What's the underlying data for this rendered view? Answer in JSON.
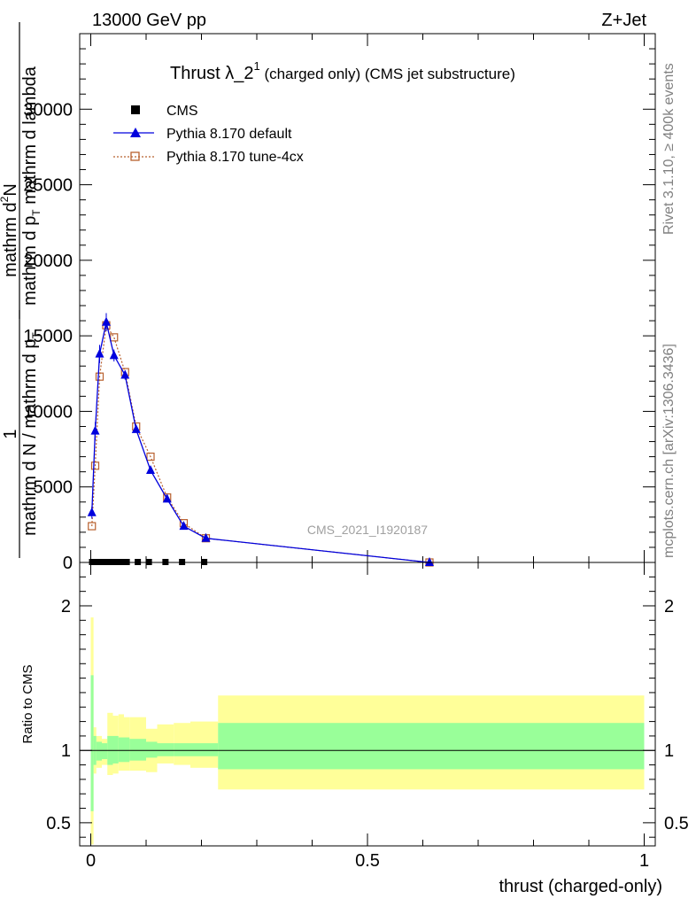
{
  "header": {
    "left": "13000 GeV pp",
    "right": "Z+Jet"
  },
  "title": {
    "main": "Thrust λ_2",
    "sup": "1",
    "rest": " (charged only) (CMS jet substructure)"
  },
  "side_labels": {
    "rivet": "Rivet 3.1.10, ≥ 400k events",
    "mcplots": "mcplots.cern.ch [arXiv:1306.3436]"
  },
  "watermark": "CMS_2021_I1920187",
  "ylabel_main": {
    "line1": "mathrm d",
    "line1_sup": "2",
    "line1_tail": "N",
    "line2": "mathrm d p",
    "line2_sub": "T",
    "line2_tail": " mathrm d lambda",
    "one": "1",
    "line3": "mathrm d N / mathrm d p",
    "line3_sub": "T"
  },
  "ylabel_ratio": "Ratio to CMS",
  "xlabel": "thrust (charged-only)",
  "legend": [
    {
      "label": "CMS"
    },
    {
      "label": "Pythia 8.170 default"
    },
    {
      "label": "Pythia 8.170 tune-4cx"
    }
  ],
  "colors": {
    "cms": "#000000",
    "default": "#0000dd",
    "tune": "#b8602e",
    "band_inner": "#99ff99",
    "band_outer": "#ffff99"
  },
  "chart_data": [
    {
      "type": "line",
      "panel": "main",
      "xlim": [
        -0.02,
        1.02
      ],
      "ylim": [
        0,
        35000
      ],
      "yticks": [
        0,
        5000,
        10000,
        15000,
        20000,
        25000,
        30000
      ],
      "ytick_labels": [
        "0",
        "5000",
        "10000",
        "15000",
        "20000",
        "25000",
        "30000"
      ],
      "series": [
        {
          "name": "CMS",
          "x": [
            0.0025,
            0.0075,
            0.0125,
            0.0175,
            0.025,
            0.035,
            0.045,
            0.055,
            0.065,
            0.085,
            0.105,
            0.135,
            0.165,
            0.205
          ],
          "y": [
            0,
            0,
            0,
            0,
            0,
            0,
            0,
            0,
            0,
            0,
            0,
            0,
            0,
            0
          ]
        },
        {
          "name": "Pythia 8.170 default",
          "x": [
            0.002,
            0.008,
            0.016,
            0.028,
            0.042,
            0.062,
            0.082,
            0.108,
            0.138,
            0.168,
            0.208,
            0.612
          ],
          "y": [
            3300,
            8700,
            13800,
            15900,
            13700,
            12400,
            8800,
            6100,
            4200,
            2400,
            1600,
            0
          ],
          "yerr": [
            400,
            600,
            600,
            600,
            400,
            300,
            200,
            150,
            120,
            100,
            80,
            20
          ]
        },
        {
          "name": "Pythia 8.170 tune-4cx",
          "x": [
            0.002,
            0.008,
            0.016,
            0.028,
            0.042,
            0.062,
            0.082,
            0.108,
            0.138,
            0.168,
            0.208,
            0.612
          ],
          "y": [
            2400,
            6400,
            12300,
            15700,
            14900,
            12600,
            9000,
            7000,
            4300,
            2600,
            1600,
            0
          ]
        }
      ]
    },
    {
      "type": "area",
      "panel": "ratio",
      "xlim": [
        -0.02,
        1.02
      ],
      "ylim": [
        0.34,
        2.3
      ],
      "yticks": [
        0.5,
        1,
        2
      ],
      "ytick_labels": [
        "0.5",
        "1",
        "2"
      ],
      "xticks": [
        0,
        0.5,
        1
      ],
      "xtick_labels": [
        "0",
        "0.5",
        "1"
      ],
      "bands": [
        {
          "x0": 0.0,
          "x1": 0.005,
          "inner": [
            0.58,
            1.52
          ],
          "outer": [
            0.35,
            1.92
          ]
        },
        {
          "x0": 0.005,
          "x1": 0.01,
          "inner": [
            0.9,
            1.1
          ],
          "outer": [
            0.84,
            1.16
          ]
        },
        {
          "x0": 0.01,
          "x1": 0.02,
          "inner": [
            0.93,
            1.06
          ],
          "outer": [
            0.88,
            1.1
          ]
        },
        {
          "x0": 0.02,
          "x1": 0.03,
          "inner": [
            0.94,
            1.05
          ],
          "outer": [
            0.9,
            1.08
          ]
        },
        {
          "x0": 0.03,
          "x1": 0.04,
          "inner": [
            0.9,
            1.1
          ],
          "outer": [
            0.83,
            1.26
          ]
        },
        {
          "x0": 0.04,
          "x1": 0.05,
          "inner": [
            0.91,
            1.1
          ],
          "outer": [
            0.84,
            1.24
          ]
        },
        {
          "x0": 0.05,
          "x1": 0.06,
          "inner": [
            0.92,
            1.09
          ],
          "outer": [
            0.86,
            1.25
          ]
        },
        {
          "x0": 0.06,
          "x1": 0.07,
          "inner": [
            0.92,
            1.09
          ],
          "outer": [
            0.86,
            1.23
          ]
        },
        {
          "x0": 0.07,
          "x1": 0.1,
          "inner": [
            0.93,
            1.08
          ],
          "outer": [
            0.86,
            1.23
          ]
        },
        {
          "x0": 0.1,
          "x1": 0.12,
          "inner": [
            0.95,
            1.06
          ],
          "outer": [
            0.85,
            1.15
          ]
        },
        {
          "x0": 0.12,
          "x1": 0.15,
          "inner": [
            0.96,
            1.05
          ],
          "outer": [
            0.91,
            1.18
          ]
        },
        {
          "x0": 0.15,
          "x1": 0.18,
          "inner": [
            0.96,
            1.05
          ],
          "outer": [
            0.9,
            1.19
          ]
        },
        {
          "x0": 0.18,
          "x1": 0.23,
          "inner": [
            0.96,
            1.05
          ],
          "outer": [
            0.88,
            1.2
          ]
        },
        {
          "x0": 0.23,
          "x1": 1.0,
          "inner": [
            0.87,
            1.19
          ],
          "outer": [
            0.73,
            1.38
          ]
        }
      ],
      "reference": 1
    }
  ]
}
